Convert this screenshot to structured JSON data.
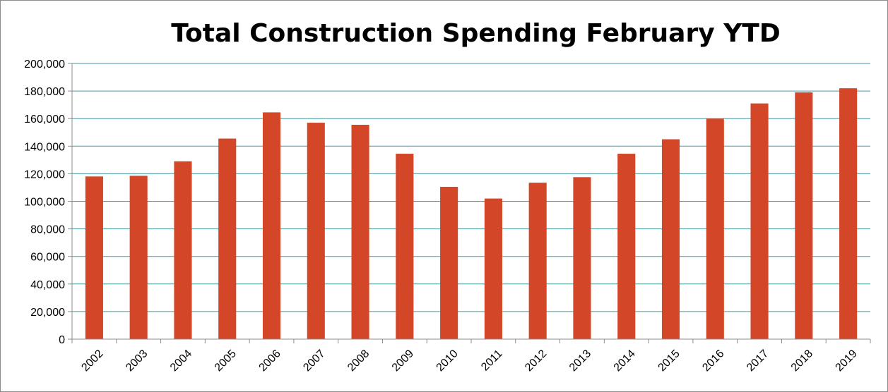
{
  "chart_data": {
    "type": "bar",
    "title": "Total Construction Spending February YTD",
    "xlabel": "",
    "ylabel": "",
    "categories": [
      "2002",
      "2003",
      "2004",
      "2005",
      "2006",
      "2007",
      "2008",
      "2009",
      "2010",
      "2011",
      "2012",
      "2013",
      "2014",
      "2015",
      "2016",
      "2017",
      "2018",
      "2019"
    ],
    "values": [
      118000,
      118500,
      129000,
      145500,
      164500,
      157000,
      155500,
      134500,
      110500,
      102000,
      113500,
      117500,
      134500,
      145000,
      160000,
      171000,
      179000,
      182000
    ],
    "ylim": [
      0,
      200000
    ],
    "yticks": [
      0,
      20000,
      40000,
      60000,
      80000,
      100000,
      120000,
      140000,
      160000,
      180000,
      200000
    ],
    "ytick_labels": [
      "0",
      "20,000",
      "40,000",
      "60,000",
      "80,000",
      "100,000",
      "120,000",
      "140,000",
      "160,000",
      "180,000",
      "200,000"
    ],
    "grid": true,
    "legend": "none",
    "colors": {
      "bar": "#d34728",
      "grid": "#3f9aa0",
      "axis": "#8c8c8c"
    }
  }
}
